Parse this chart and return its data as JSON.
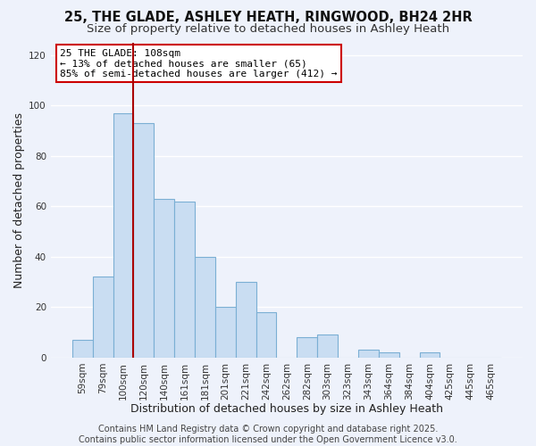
{
  "title": "25, THE GLADE, ASHLEY HEATH, RINGWOOD, BH24 2HR",
  "subtitle": "Size of property relative to detached houses in Ashley Heath",
  "xlabel": "Distribution of detached houses by size in Ashley Heath",
  "ylabel": "Number of detached properties",
  "bar_labels": [
    "59sqm",
    "79sqm",
    "100sqm",
    "120sqm",
    "140sqm",
    "161sqm",
    "181sqm",
    "201sqm",
    "221sqm",
    "242sqm",
    "262sqm",
    "282sqm",
    "303sqm",
    "323sqm",
    "343sqm",
    "364sqm",
    "384sqm",
    "404sqm",
    "425sqm",
    "445sqm",
    "465sqm"
  ],
  "bar_values": [
    7,
    32,
    97,
    93,
    63,
    62,
    40,
    20,
    30,
    18,
    0,
    8,
    9,
    0,
    3,
    2,
    0,
    2,
    0,
    0,
    0
  ],
  "bar_color": "#c9ddf2",
  "bar_edge_color": "#7bafd4",
  "vline_x_index": 2.5,
  "vline_color": "#aa0000",
  "ylim": [
    0,
    125
  ],
  "yticks": [
    0,
    20,
    40,
    60,
    80,
    100,
    120
  ],
  "annotation_title": "25 THE GLADE: 108sqm",
  "annotation_line1": "← 13% of detached houses are smaller (65)",
  "annotation_line2": "85% of semi-detached houses are larger (412) →",
  "annotation_box_color": "#ffffff",
  "annotation_box_edge": "#cc0000",
  "footer1": "Contains HM Land Registry data © Crown copyright and database right 2025.",
  "footer2": "Contains public sector information licensed under the Open Government Licence v3.0.",
  "bg_color": "#eef2fb",
  "grid_color": "#ffffff",
  "title_fontsize": 10.5,
  "subtitle_fontsize": 9.5,
  "axis_label_fontsize": 9,
  "tick_fontsize": 7.5,
  "annotation_fontsize": 8,
  "footer_fontsize": 7
}
